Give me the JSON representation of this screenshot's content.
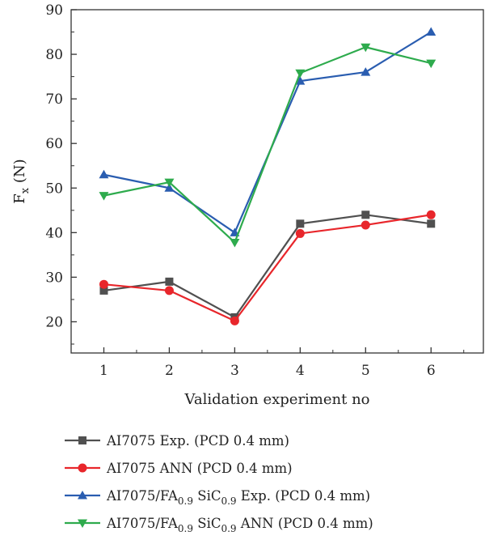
{
  "chart_data": {
    "type": "line",
    "title": "",
    "xlabel": "Validation experiment no",
    "ylabel": {
      "main": "F",
      "sub": "x",
      "unit": " (N)"
    },
    "x": [
      1,
      2,
      3,
      4,
      5,
      6
    ],
    "xlim": [
      0.5,
      6.8
    ],
    "ylim": [
      13,
      90
    ],
    "xticks": [
      1,
      2,
      3,
      4,
      5,
      6
    ],
    "yticks": [
      20,
      30,
      40,
      50,
      60,
      70,
      80,
      90
    ],
    "grid": false,
    "legend_position": "bottom",
    "series": [
      {
        "name": "AI7075 Exp. (PCD 0.4 mm)",
        "name_parts": [
          {
            "t": "AI7075 Exp. (PCD 0.4 mm)",
            "sub": false
          }
        ],
        "color": "#505050",
        "marker": "square",
        "values": [
          27,
          29,
          21,
          42,
          44,
          42
        ]
      },
      {
        "name": "AI7075 ANN (PCD 0.4 mm)",
        "name_parts": [
          {
            "t": "AI7075 ANN (PCD 0.4 mm)",
            "sub": false
          }
        ],
        "color": "#e8262b",
        "marker": "circle",
        "values": [
          28.4,
          27,
          20.2,
          39.8,
          41.7,
          44
        ]
      },
      {
        "name": "AI7075/FA0.9 SiC0.9 Exp. (PCD 0.4 mm)",
        "name_parts": [
          {
            "t": "AI7075/FA",
            "sub": false
          },
          {
            "t": "0.9",
            "sub": true
          },
          {
            "t": " SiC",
            "sub": false
          },
          {
            "t": "0.9",
            "sub": true
          },
          {
            "t": " Exp. (PCD 0.4 mm)",
            "sub": false
          }
        ],
        "color": "#2a5db0",
        "marker": "triangle-up",
        "values": [
          53,
          50,
          40,
          74,
          76,
          85
        ]
      },
      {
        "name": "AI7075/FA0.9 SiC0.9 ANN (PCD 0.4 mm)",
        "name_parts": [
          {
            "t": "AI7075/FA",
            "sub": false
          },
          {
            "t": "0.9",
            "sub": true
          },
          {
            "t": " SiC",
            "sub": false
          },
          {
            "t": "0.9",
            "sub": true
          },
          {
            "t": " ANN (PCD 0.4 mm)",
            "sub": false
          }
        ],
        "color": "#2eab4d",
        "marker": "triangle-down",
        "values": [
          48.3,
          51.3,
          37.8,
          75.8,
          81.6,
          78
        ]
      }
    ]
  }
}
